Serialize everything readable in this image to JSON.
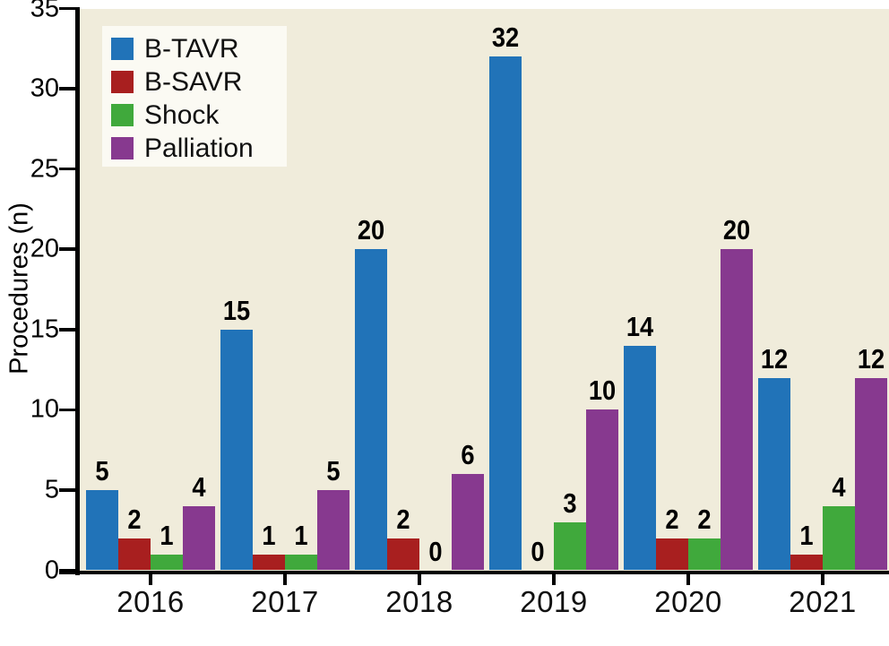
{
  "chart_data": {
    "type": "bar",
    "title": "",
    "ylabel": "Procedures (n)",
    "xlabel": "",
    "ylim": [
      0,
      35
    ],
    "yticks": [
      0,
      5,
      10,
      15,
      20,
      25,
      30,
      35
    ],
    "categories": [
      "2016",
      "2017",
      "2018",
      "2019",
      "2020",
      "2021"
    ],
    "series": [
      {
        "name": "B-TAVR",
        "color": "#2173B8",
        "values": [
          5,
          15,
          20,
          32,
          14,
          12
        ]
      },
      {
        "name": "B-SAVR",
        "color": "#A81F1F",
        "values": [
          2,
          1,
          2,
          0,
          2,
          1
        ]
      },
      {
        "name": "Shock",
        "color": "#40A93C",
        "values": [
          1,
          1,
          0,
          3,
          2,
          4
        ]
      },
      {
        "name": "Palliation",
        "color": "#87398F",
        "values": [
          4,
          5,
          6,
          10,
          20,
          12
        ]
      }
    ],
    "bar_value_labels": true,
    "grid": false,
    "legend_position": "top-left",
    "colors": {
      "plot_background": "#F0ECDB",
      "legend_background": "#FBFAF3",
      "axis": "#000000",
      "text": "#000000"
    }
  }
}
